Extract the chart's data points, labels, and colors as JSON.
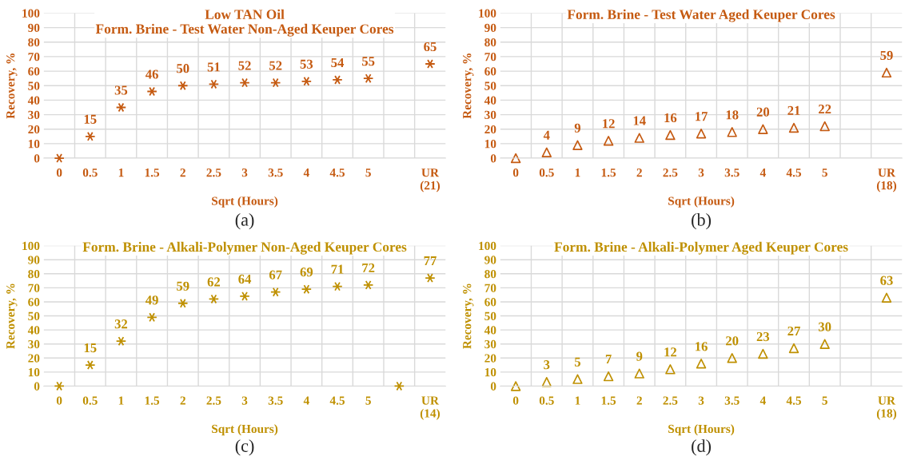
{
  "chart_data": [
    {
      "type": "scatter",
      "title": "Low TAN Oil\nForm. Brine - Test Water Non-Aged Keuper Cores",
      "xlabel": "Sqrt (Hours)",
      "ylabel": "Recovery, %",
      "categories": [
        "0",
        "0.5",
        "1",
        "1.5",
        "2",
        "2.5",
        "3",
        "3.5",
        "4",
        "4.5",
        "5",
        null,
        "UR\n(21)"
      ],
      "series": [
        {
          "color": "#c55a11",
          "values": [
            0,
            15,
            35,
            46,
            50,
            51,
            52,
            52,
            53,
            54,
            55,
            null,
            65
          ],
          "value_labels": [
            null,
            "15",
            "35",
            "46",
            "50",
            "51",
            "52",
            "52",
            "53",
            "54",
            "55",
            null,
            "65"
          ]
        }
      ],
      "marker": "cross",
      "ylim": [
        0,
        100
      ],
      "yticks": [
        0,
        10,
        20,
        30,
        40,
        50,
        60,
        70,
        80,
        90,
        100
      ],
      "grid": true,
      "annotations": [
        "(a)"
      ]
    },
    {
      "type": "scatter",
      "title": "Form. Brine - Test Water Aged Keuper Cores",
      "xlabel": "Sqrt (Hours)",
      "ylabel": "Recovery, %",
      "categories": [
        "0",
        "0.5",
        "1",
        "1.5",
        "2",
        "2.5",
        "3",
        "3.5",
        "4",
        "4.5",
        "5",
        null,
        "UR\n(18)"
      ],
      "series": [
        {
          "color": "#c55a11",
          "values": [
            0,
            4,
            9,
            12,
            14,
            16,
            17,
            18,
            20,
            21,
            22,
            null,
            59
          ],
          "value_labels": [
            null,
            "4",
            "9",
            "12",
            "14",
            "16",
            "17",
            "18",
            "20",
            "21",
            "22",
            null,
            "59"
          ]
        }
      ],
      "marker": "triangle",
      "ylim": [
        0,
        100
      ],
      "yticks": [
        0,
        10,
        20,
        30,
        40,
        50,
        60,
        70,
        80,
        90,
        100
      ],
      "grid": true,
      "annotations": [
        "(b)"
      ]
    },
    {
      "type": "scatter",
      "title": "Form. Brine - Alkali-Polymer Non-Aged Keuper Cores",
      "xlabel": "Sqrt (Hours)",
      "ylabel": "Recovery, %",
      "categories": [
        "0",
        "0.5",
        "1",
        "1.5",
        "2",
        "2.5",
        "3",
        "3.5",
        "4",
        "4.5",
        "5",
        null,
        "UR\n(14)"
      ],
      "series": [
        {
          "color": "#bf9000",
          "values": [
            0,
            15,
            32,
            49,
            59,
            62,
            64,
            67,
            69,
            71,
            72,
            0,
            77
          ],
          "value_labels": [
            null,
            "15",
            "32",
            "49",
            "59",
            "62",
            "64",
            "67",
            "69",
            "71",
            "72",
            null,
            "77"
          ]
        }
      ],
      "marker": "cross",
      "ylim": [
        0,
        100
      ],
      "yticks": [
        0,
        10,
        20,
        30,
        40,
        50,
        60,
        70,
        80,
        90,
        100
      ],
      "grid": true,
      "annotations": [
        "(c)"
      ]
    },
    {
      "type": "scatter",
      "title": "Form. Brine - Alkali-Polymer Aged Keuper Cores",
      "xlabel": "Sqrt (Hours)",
      "ylabel": "Recovery, %",
      "categories": [
        "0",
        "0.5",
        "1",
        "1.5",
        "2",
        "2.5",
        "3",
        "3.5",
        "4",
        "4.5",
        "5",
        null,
        "UR\n(18)"
      ],
      "series": [
        {
          "color": "#bf9000",
          "values": [
            0,
            3,
            5,
            7,
            9,
            12,
            16,
            20,
            23,
            27,
            30,
            null,
            63
          ],
          "value_labels": [
            null,
            "3",
            "5",
            "7",
            "9",
            "12",
            "16",
            "20",
            "23",
            "27",
            "30",
            null,
            "63"
          ]
        }
      ],
      "marker": "triangle",
      "ylim": [
        0,
        100
      ],
      "yticks": [
        0,
        10,
        20,
        30,
        40,
        50,
        60,
        70,
        80,
        90,
        100
      ],
      "grid": true,
      "annotations": [
        "(d)"
      ]
    }
  ]
}
